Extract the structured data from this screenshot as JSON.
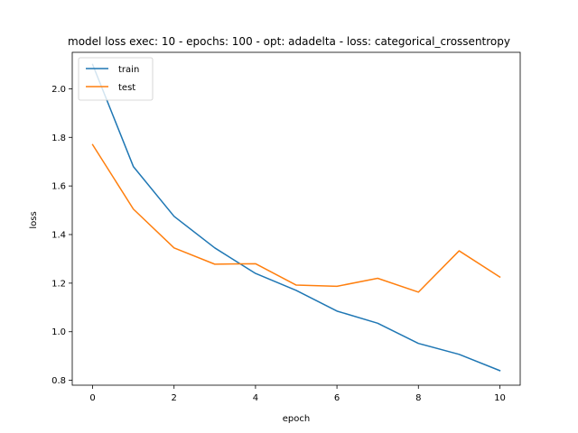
{
  "chart_data": {
    "type": "line",
    "title": "model loss exec: 10 - epochs: 100 - opt: adadelta - loss: categorical_crossentropy",
    "xlabel": "epoch",
    "ylabel": "loss",
    "xlim": [
      -0.5,
      10.5
    ],
    "ylim": [
      0.78,
      2.15
    ],
    "xticks": [
      0,
      2,
      4,
      6,
      8,
      10
    ],
    "yticks": [
      0.8,
      1.0,
      1.2,
      1.4,
      1.6,
      1.8,
      2.0
    ],
    "grid": false,
    "legend_position": "top-left",
    "x": [
      0,
      1,
      2,
      3,
      4,
      5,
      6,
      7,
      8,
      9,
      10
    ],
    "series": [
      {
        "name": "train",
        "color": "#1f77b4",
        "values": [
          2.1,
          1.68,
          1.475,
          1.345,
          1.24,
          1.17,
          1.085,
          1.035,
          0.952,
          0.907,
          0.84
        ]
      },
      {
        "name": "test",
        "color": "#ff7f0e",
        "values": [
          1.77,
          1.505,
          1.345,
          1.278,
          1.28,
          1.192,
          1.187,
          1.22,
          1.163,
          1.333,
          1.225
        ]
      }
    ]
  }
}
